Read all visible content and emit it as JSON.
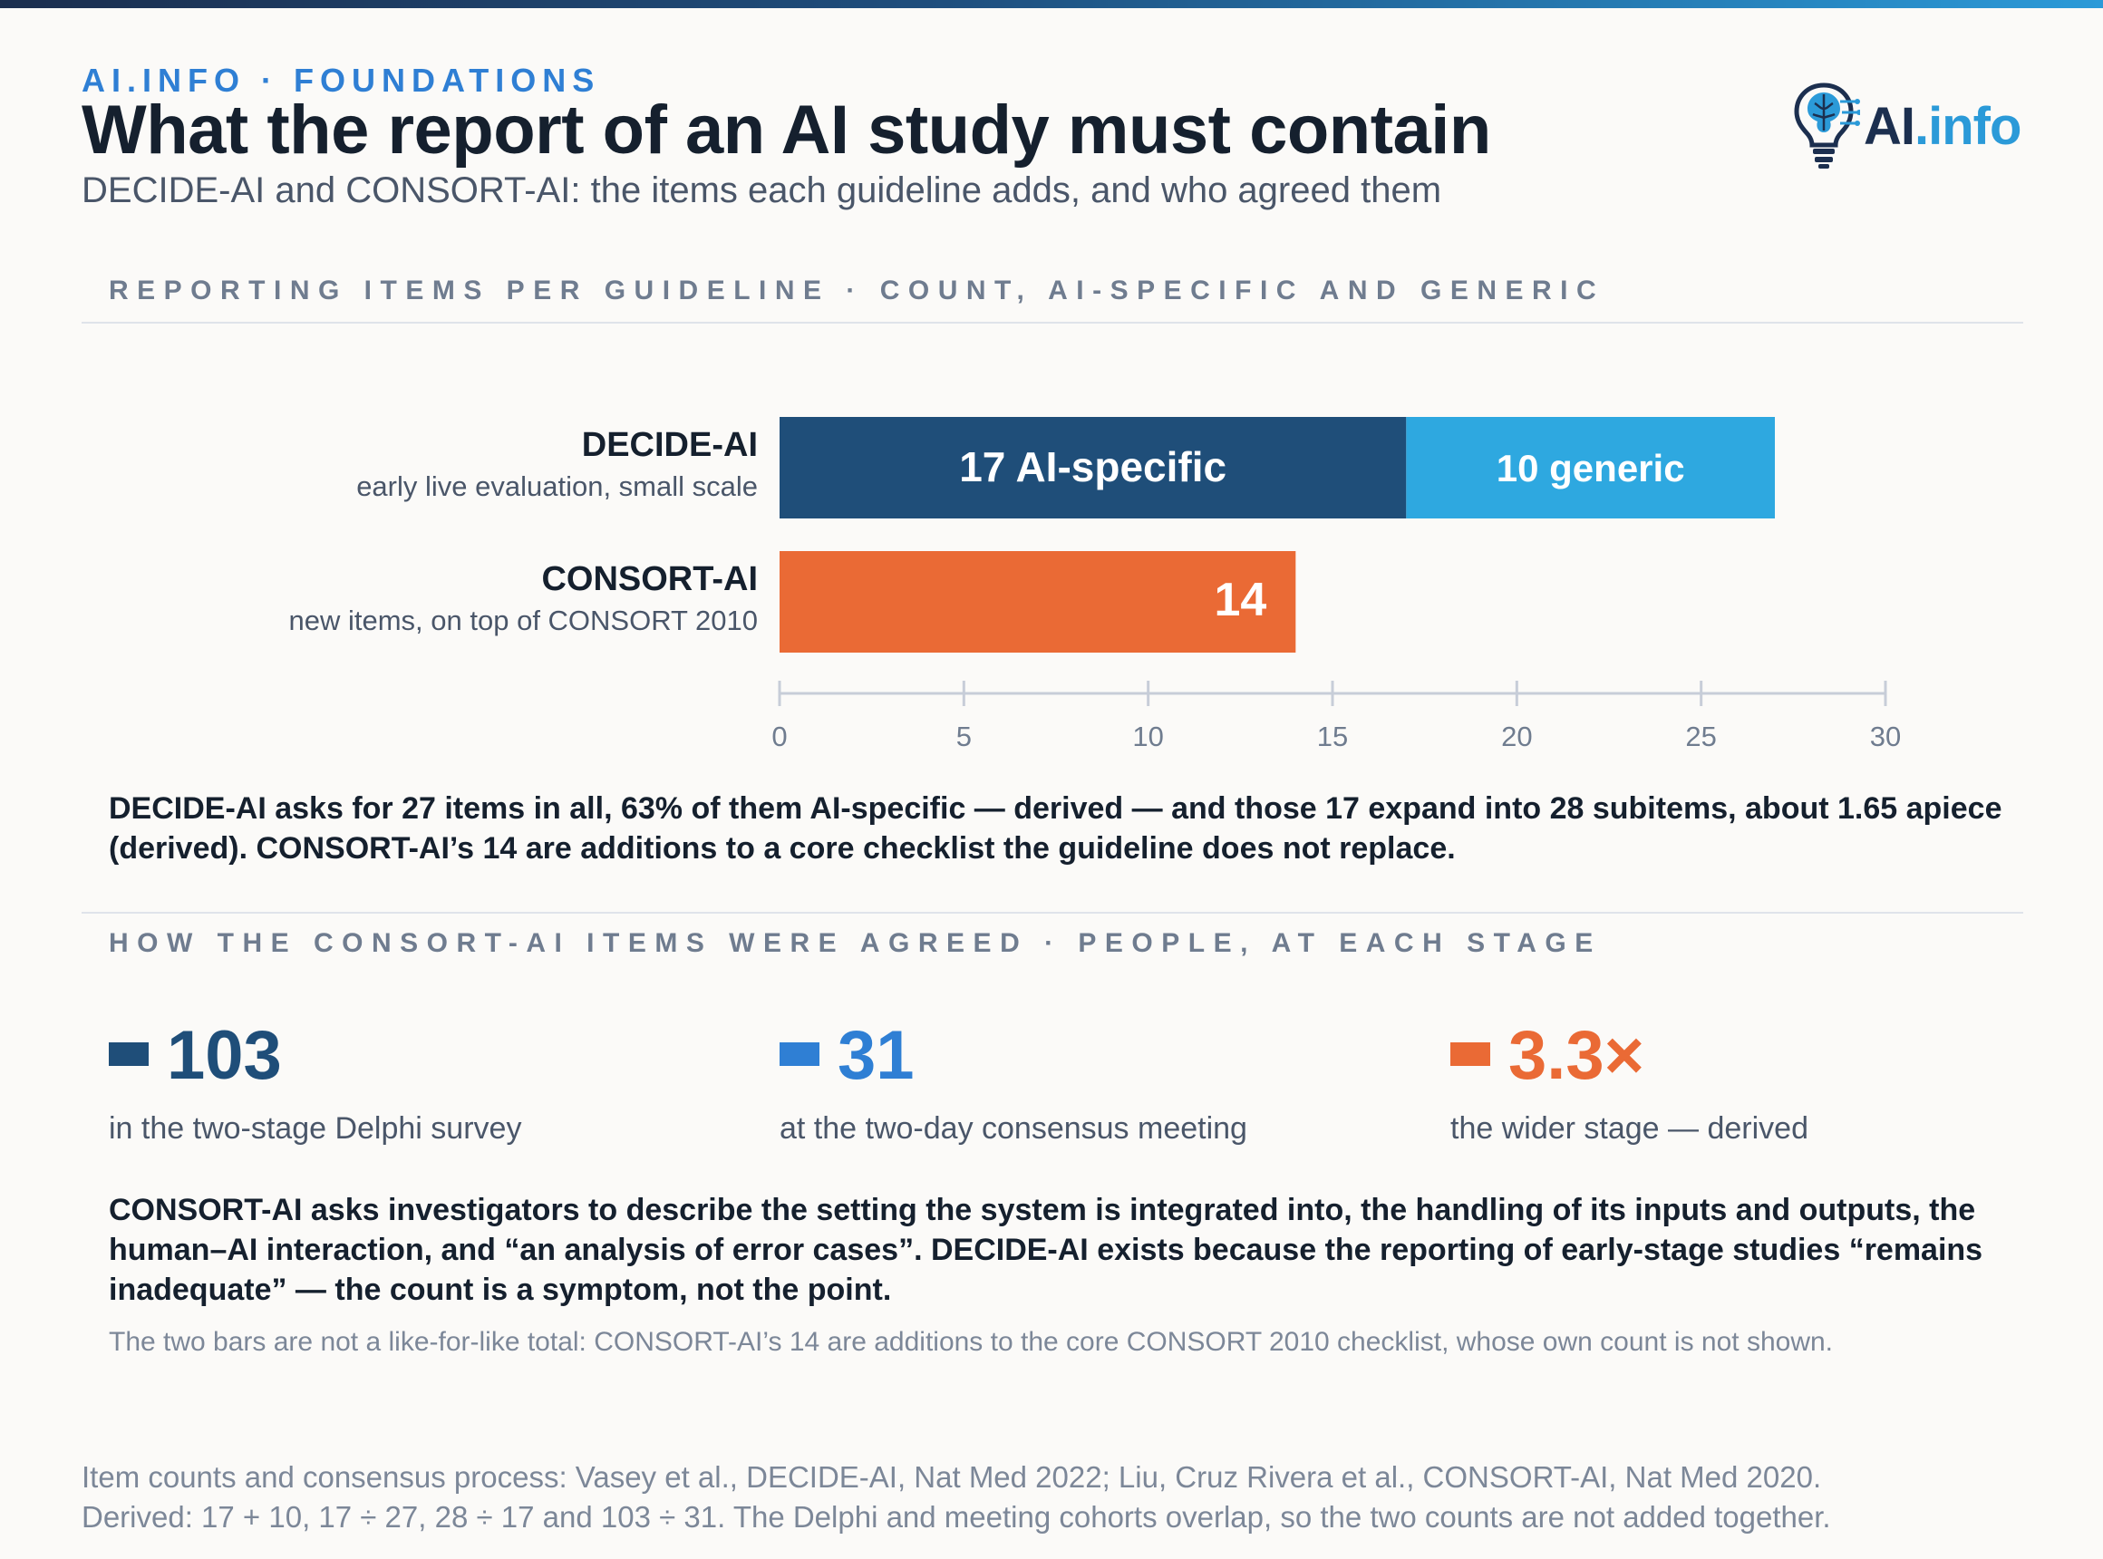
{
  "header": {
    "kicker": "AI.INFO · FOUNDATIONS",
    "title": "What the report of an AI study must contain",
    "subtitle": "DECIDE-AI and CONSORT-AI: the items each guideline adds, and who agreed them",
    "logo_text_main": "AI",
    "logo_text_dot": ".info"
  },
  "sections": {
    "items_heading": "REPORTING ITEMS PER GUIDELINE · COUNT, AI-SPECIFIC AND GENERIC",
    "agreement_heading": "HOW THE CONSORT-AI ITEMS WERE AGREED · PEOPLE, AT EACH STAGE"
  },
  "chart_data": {
    "type": "bar",
    "orientation": "horizontal",
    "stacked": true,
    "categories": [
      "DECIDE-AI",
      "CONSORT-AI"
    ],
    "category_descriptions": [
      "early live evaluation, small scale",
      "new items, on top of CONSORT 2010"
    ],
    "segments": [
      [
        {
          "value": 17,
          "label": "17 AI-specific",
          "color": "#1f4e79"
        },
        {
          "value": 10,
          "label": "10 generic",
          "color": "#2ea8e0"
        }
      ],
      [
        {
          "value": 14,
          "label": "14",
          "color": "#ea6a35"
        }
      ]
    ],
    "xlim": [
      0,
      30
    ],
    "xticks": [
      0,
      5,
      10,
      15,
      20,
      25,
      30
    ],
    "grid": false
  },
  "notes": {
    "items_note": "DECIDE-AI asks for 27 items in all, 63% of them AI-specific — derived — and those 17 expand into 28 subitems, about 1.65 apiece (derived). CONSORT-AI’s 14 are additions to a core checklist the guideline does not replace.",
    "agreement_note": "CONSORT-AI asks investigators to describe the setting the system is integrated into, the handling of its inputs and outputs, the human–AI interaction, and “an analysis of error cases”. DECIDE-AI exists because the reporting of early-stage studies “remains inadequate” — the count is a symptom, not the point.",
    "footnote": "The two bars are not a like-for-like total: CONSORT-AI’s 14 are additions to the core CONSORT 2010 checklist, whose own count is not shown."
  },
  "stats": [
    {
      "value": "103",
      "label": "in the two-stage Delphi survey",
      "color": "#1f4e79"
    },
    {
      "value": "31",
      "label": "at the two-day consensus meeting",
      "color": "#2f7fd4"
    },
    {
      "value": "3.3×",
      "label": "the wider stage — derived",
      "color": "#ea6a35"
    }
  ],
  "source": {
    "line1": "Item counts and consensus process: Vasey et al., DECIDE-AI, Nat Med 2022; Liu, Cruz Rivera et al., CONSORT-AI, Nat Med 2020.",
    "line2": "Derived: 17 + 10, 17 ÷ 27, 28 ÷ 17 and 103 ÷ 31. The Delphi and meeting cohorts overlap, so the two counts are not added together."
  }
}
